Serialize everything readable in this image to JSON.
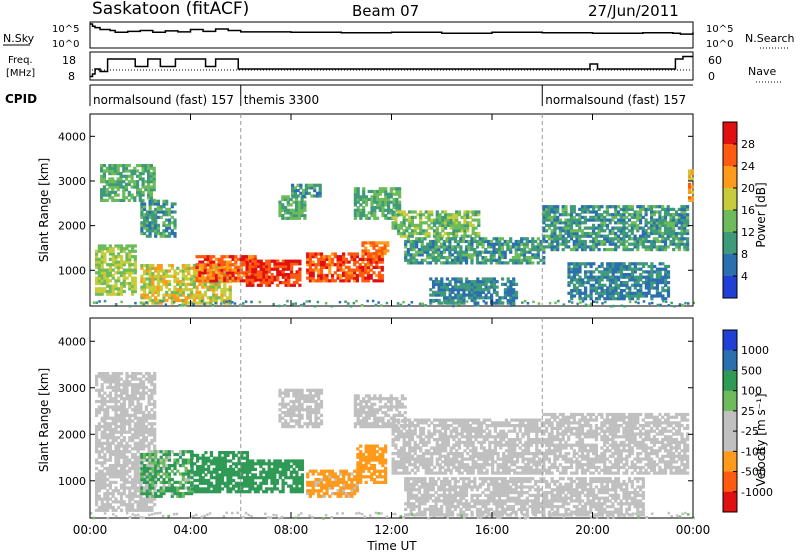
{
  "header": {
    "station": "Saskatoon (fitACF)",
    "beam": "Beam 07",
    "date": "27/Jun/2011"
  },
  "labels": {
    "nsky": "N.Sky",
    "nsearch": "N.Search",
    "freq_top": "Freq.",
    "freq_unit": "[MHz]",
    "nave": "Nave",
    "cpid": "CPID",
    "nsky_ticks": [
      "10^5",
      "10^0"
    ],
    "nsearch_ticks": [
      "10^5",
      "10^0"
    ],
    "freq_ticks": [
      "18",
      "8"
    ],
    "nave_ticks": [
      "60",
      "0"
    ]
  },
  "cpid_segments": [
    {
      "text": "normalsound (fast) 157",
      "start": 0,
      "end": 6
    },
    {
      "text": "themis 3300",
      "start": 6,
      "end": 18
    },
    {
      "text": "normalsound (fast) 157",
      "start": 18,
      "end": 24
    }
  ],
  "colors": {
    "power": [
      "#1f3fd6",
      "#2c6fb0",
      "#3f9a7a",
      "#6dbb5a",
      "#c7cc3a",
      "#ff9a1a",
      "#ff5a10",
      "#e11010"
    ],
    "velocity": [
      "#e11010",
      "#ff5a10",
      "#ff9a1a",
      "#c0c0c0",
      "#c0c0c0",
      "#6dbb5a",
      "#2f9a55",
      "#2c6fb0",
      "#1f3fd6"
    ],
    "grid": "#999999"
  },
  "chart_data": [
    {
      "type": "line",
      "name": "nsky-nsearch",
      "x": [
        0,
        0.1,
        0.2,
        0.4,
        0.8,
        1,
        1.5,
        2,
        2.5,
        3,
        3.5,
        4,
        4.5,
        5,
        5.5,
        6,
        8,
        10,
        12,
        14,
        16,
        18,
        20,
        22,
        23.2,
        23.5,
        24
      ],
      "y": [
        5,
        4.5,
        4.2,
        3.8,
        3.6,
        3.2,
        3.4,
        3.6,
        3.2,
        3.5,
        3.3,
        3.8,
        3.4,
        3.9,
        3.6,
        3.3,
        3.2,
        3.1,
        3.2,
        3.0,
        3.2,
        3.1,
        3.0,
        3.1,
        3.0,
        2.8,
        3.2
      ]
    },
    {
      "type": "line",
      "name": "frequency",
      "ylabel": "Freq. [MHz]",
      "ylim": [
        8,
        18
      ],
      "x": [
        0,
        0.1,
        0.2,
        0.4,
        0.7,
        1.2,
        1.8,
        2.3,
        2.8,
        3.4,
        4.0,
        4.6,
        5.0,
        5.3,
        5.9,
        6.2,
        19.6,
        19.9,
        20.2,
        22.0,
        22.2,
        23.3,
        23.6,
        24
      ],
      "y": [
        9,
        10,
        12,
        11,
        16,
        16,
        13,
        16,
        13,
        16,
        16,
        13,
        16,
        16,
        12,
        12,
        12,
        14,
        12,
        12,
        12,
        16,
        17,
        17
      ]
    },
    {
      "type": "heatmap",
      "name": "power",
      "title": "Power [dB]",
      "xlabel": "Time UT",
      "ylabel": "Slant Range [km]",
      "xlim": [
        0,
        24
      ],
      "ylim": [
        200,
        4500
      ],
      "yticks": [
        1000,
        2000,
        3000,
        4000
      ],
      "xticks": [
        "00:00",
        "04:00",
        "08:00",
        "12:00",
        "16:00",
        "20:00",
        "00:00"
      ],
      "colorbar_ticks": [
        "28",
        "24",
        "20",
        "16",
        "12",
        "8",
        "4"
      ],
      "colorbar_range": [
        0,
        30
      ],
      "regions": [
        {
          "t": [
            0.2,
            1.8
          ],
          "r": [
            500,
            1600
          ],
          "v": 16
        },
        {
          "t": [
            0.4,
            2.6
          ],
          "r": [
            2600,
            3400
          ],
          "v": 12
        },
        {
          "t": [
            2.0,
            3.4
          ],
          "r": [
            1800,
            2600
          ],
          "v": 10
        },
        {
          "t": [
            2.0,
            5.6
          ],
          "r": [
            300,
            1200
          ],
          "v": 18
        },
        {
          "t": [
            4.2,
            6.6
          ],
          "r": [
            800,
            1400
          ],
          "v": 26
        },
        {
          "t": [
            6.2,
            8.3
          ],
          "r": [
            700,
            1300
          ],
          "v": 28
        },
        {
          "t": [
            8.6,
            11.6
          ],
          "r": [
            800,
            1450
          ],
          "v": 27
        },
        {
          "t": [
            10.8,
            11.8
          ],
          "r": [
            1350,
            1700
          ],
          "v": 24
        },
        {
          "t": [
            7.5,
            8.5
          ],
          "r": [
            2200,
            2700
          ],
          "v": 12
        },
        {
          "t": [
            8.0,
            9.2
          ],
          "r": [
            2700,
            3000
          ],
          "v": 10
        },
        {
          "t": [
            10.5,
            12.3
          ],
          "r": [
            2200,
            2900
          ],
          "v": 12
        },
        {
          "t": [
            12.0,
            15.5
          ],
          "r": [
            1800,
            2400
          ],
          "v": 14
        },
        {
          "t": [
            12.5,
            18.0
          ],
          "r": [
            1200,
            1800
          ],
          "v": 10
        },
        {
          "t": [
            13.5,
            17.0
          ],
          "r": [
            300,
            900
          ],
          "v": 8
        },
        {
          "t": [
            18.0,
            23.8
          ],
          "r": [
            1500,
            2500
          ],
          "v": 10
        },
        {
          "t": [
            19.0,
            23.0
          ],
          "r": [
            400,
            1200
          ],
          "v": 8
        },
        {
          "t": [
            23.8,
            24.0
          ],
          "r": [
            2600,
            3300
          ],
          "v": 22
        }
      ]
    },
    {
      "type": "heatmap",
      "name": "velocity",
      "title": "Velocity [m s⁻¹]",
      "xlabel": "Time UT",
      "ylabel": "Slant Range [km]",
      "xlim": [
        0,
        24
      ],
      "ylim": [
        200,
        4500
      ],
      "yticks": [
        1000,
        2000,
        3000,
        4000
      ],
      "xticks": [
        "00:00",
        "04:00",
        "08:00",
        "12:00",
        "16:00",
        "20:00",
        "00:00"
      ],
      "colorbar_ticks": [
        "1000",
        "500",
        "100",
        "25",
        "-25",
        "-100",
        "-500",
        "-1000"
      ],
      "regions": [
        {
          "t": [
            0.2,
            2.6
          ],
          "r": [
            400,
            3400
          ],
          "v": 0
        },
        {
          "t": [
            2.0,
            4.0
          ],
          "r": [
            700,
            1700
          ],
          "v": 120
        },
        {
          "t": [
            4.0,
            6.3
          ],
          "r": [
            800,
            1700
          ],
          "v": 300
        },
        {
          "t": [
            6.3,
            8.5
          ],
          "r": [
            800,
            1500
          ],
          "v": 250
        },
        {
          "t": [
            8.6,
            10.6
          ],
          "r": [
            700,
            1300
          ],
          "v": -200
        },
        {
          "t": [
            10.6,
            11.8
          ],
          "r": [
            1000,
            1800
          ],
          "v": -300
        },
        {
          "t": [
            7.5,
            9.2
          ],
          "r": [
            2200,
            3000
          ],
          "v": 0
        },
        {
          "t": [
            10.5,
            12.5
          ],
          "r": [
            2200,
            2900
          ],
          "v": 0
        },
        {
          "t": [
            12.0,
            18.0
          ],
          "r": [
            1200,
            2400
          ],
          "v": 0
        },
        {
          "t": [
            18.0,
            23.8
          ],
          "r": [
            1200,
            2500
          ],
          "v": 0
        },
        {
          "t": [
            12.5,
            22.0
          ],
          "r": [
            300,
            1100
          ],
          "v": 0
        }
      ]
    }
  ]
}
